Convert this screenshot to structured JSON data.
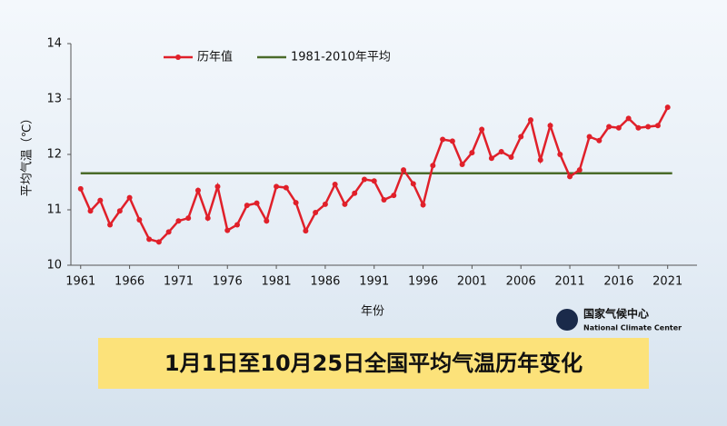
{
  "chart_data": {
    "type": "line",
    "title": "1月1日至10月25日全国平均气温历年变化",
    "xlabel": "年份",
    "ylabel": "平均气温（℃）",
    "logo_text": "国家气候中心",
    "logo_subtext": "National Climate Center",
    "x": [
      1961,
      1962,
      1963,
      1964,
      1965,
      1966,
      1967,
      1968,
      1969,
      1970,
      1971,
      1972,
      1973,
      1974,
      1975,
      1976,
      1977,
      1978,
      1979,
      1980,
      1981,
      1982,
      1983,
      1984,
      1985,
      1986,
      1987,
      1988,
      1989,
      1990,
      1991,
      1992,
      1993,
      1994,
      1995,
      1996,
      1997,
      1998,
      1999,
      2000,
      2001,
      2002,
      2003,
      2004,
      2005,
      2006,
      2007,
      2008,
      2009,
      2010,
      2011,
      2012,
      2013,
      2014,
      2015,
      2016,
      2017,
      2018,
      2019,
      2020,
      2021
    ],
    "series": [
      {
        "name": "历年值",
        "color": "#e0202a",
        "values": [
          11.38,
          10.98,
          11.17,
          10.73,
          10.98,
          11.22,
          10.82,
          10.47,
          10.42,
          10.6,
          10.8,
          10.85,
          11.35,
          10.85,
          11.42,
          10.63,
          10.73,
          11.08,
          11.12,
          10.8,
          11.42,
          11.4,
          11.13,
          10.62,
          10.95,
          11.1,
          11.46,
          11.1,
          11.3,
          11.55,
          11.52,
          11.18,
          11.26,
          11.72,
          11.47,
          11.09,
          11.8,
          12.27,
          12.24,
          11.82,
          12.03,
          12.45,
          11.93,
          12.05,
          11.95,
          12.32,
          12.62,
          11.9,
          12.52,
          12.0,
          11.6,
          11.72,
          12.32,
          12.25,
          12.5,
          12.48,
          12.65,
          12.48,
          12.5,
          12.52,
          12.85
        ]
      }
    ],
    "reference_line": {
      "name": "1981-2010年平均",
      "color": "#4a6b2a",
      "value": 11.66
    },
    "xlim": [
      1960,
      2024
    ],
    "xticks": [
      1961,
      1966,
      1971,
      1976,
      1981,
      1986,
      1991,
      1996,
      2001,
      2006,
      2011,
      2016,
      2021
    ],
    "ylim": [
      10,
      14
    ],
    "yticks": [
      10,
      11,
      12,
      13,
      14
    ],
    "grid": false,
    "legend": "top"
  }
}
